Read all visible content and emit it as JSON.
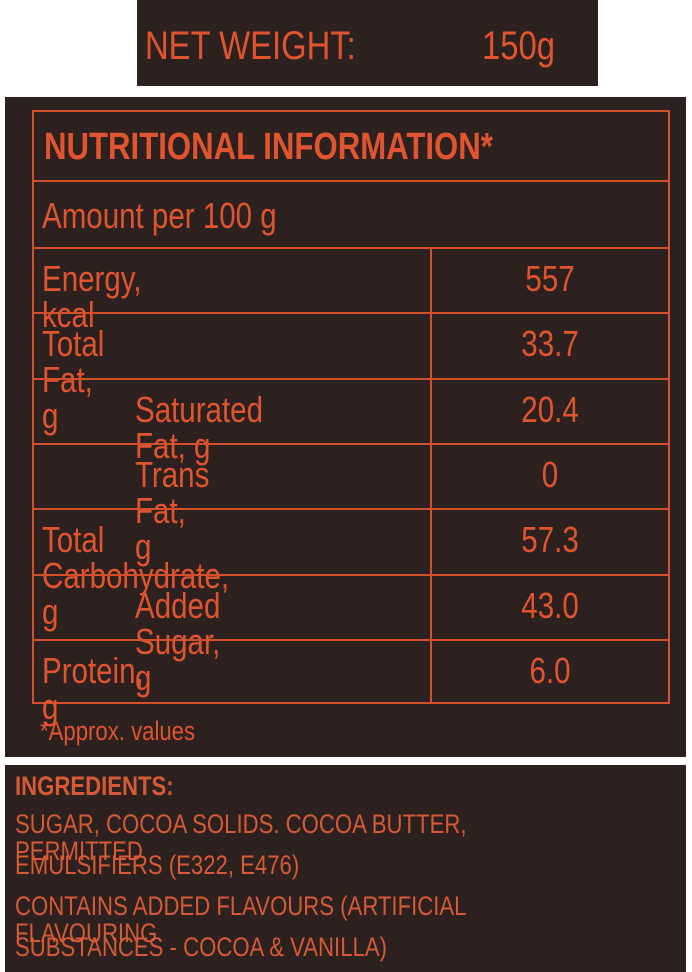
{
  "net_weight": {
    "label": "NET WEIGHT:",
    "value": "150g"
  },
  "table": {
    "title": "NUTRITIONAL INFORMATION*",
    "basis": "Amount per 100 g",
    "rows": [
      [
        "Energy, kcal",
        "557"
      ],
      [
        "Total Fat, g",
        "33.7"
      ],
      [
        "Saturated Fat, g",
        "20.4"
      ],
      [
        "Trans Fat, g",
        "0"
      ],
      [
        "Total Carbohydrate, g",
        "57.3"
      ],
      [
        "Added Sugar, g",
        "43.0"
      ],
      [
        "Protein, g",
        "6.0"
      ]
    ]
  },
  "footnote": "*Approx. values",
  "ingredients": {
    "heading": "INGREDIENTS:",
    "lines": [
      "SUGAR, COCOA SOLIDS. COCOA BUTTER, PERMITTED",
      "EMULSIFIERS (E322, E476)",
      "CONTAINS ADDED FLAVOURS (ARTIFICIAL FLAVOURING",
      "SUBSTANCES - COCOA & VANILLA)"
    ]
  }
}
